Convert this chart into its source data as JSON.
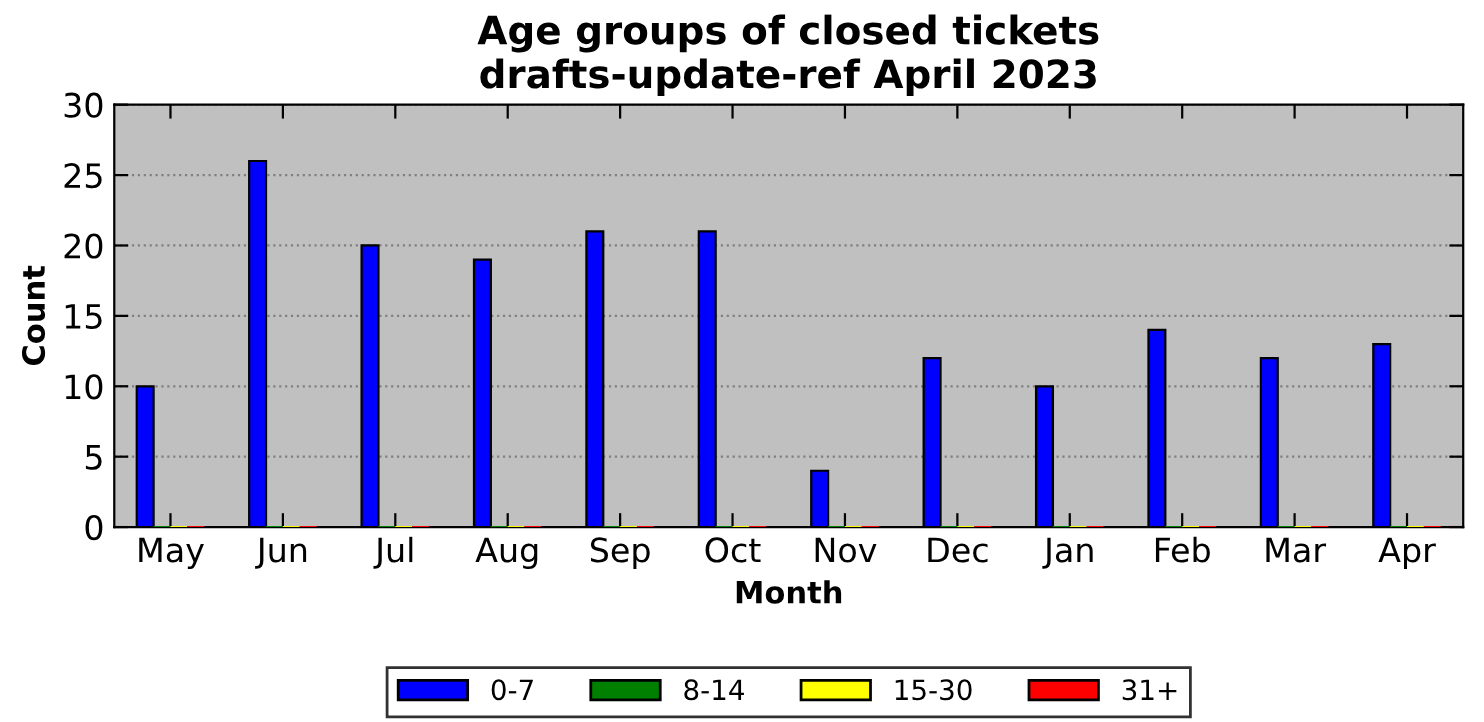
{
  "chart_data": {
    "type": "bar",
    "title": "Age groups of closed tickets\ndrafts-update-ref April 2023",
    "xlabel": "Month",
    "ylabel": "Count",
    "categories": [
      "May",
      "Jun",
      "Jul",
      "Aug",
      "Sep",
      "Oct",
      "Nov",
      "Dec",
      "Jan",
      "Feb",
      "Mar",
      "Apr"
    ],
    "series": [
      {
        "name": "0-7",
        "color": "#0000ff",
        "values": [
          10,
          26,
          20,
          19,
          21,
          21,
          4,
          12,
          10,
          14,
          12,
          13
        ]
      },
      {
        "name": "8-14",
        "color": "#008000",
        "values": [
          0,
          0,
          0,
          0,
          0,
          0,
          0,
          0,
          0,
          0,
          0,
          0
        ]
      },
      {
        "name": "15-30",
        "color": "#ffff00",
        "values": [
          0,
          0,
          0,
          0,
          0,
          0,
          0,
          0,
          0,
          0,
          0,
          0
        ]
      },
      {
        "name": "31+",
        "color": "#ff0000",
        "values": [
          0,
          0,
          0,
          0,
          0,
          0,
          0,
          0,
          0,
          0,
          0,
          0
        ]
      }
    ],
    "ylim": [
      0,
      30
    ],
    "yticks": [
      0,
      5,
      10,
      15,
      20,
      25,
      30
    ],
    "grid": "y",
    "legend": "bottom"
  }
}
